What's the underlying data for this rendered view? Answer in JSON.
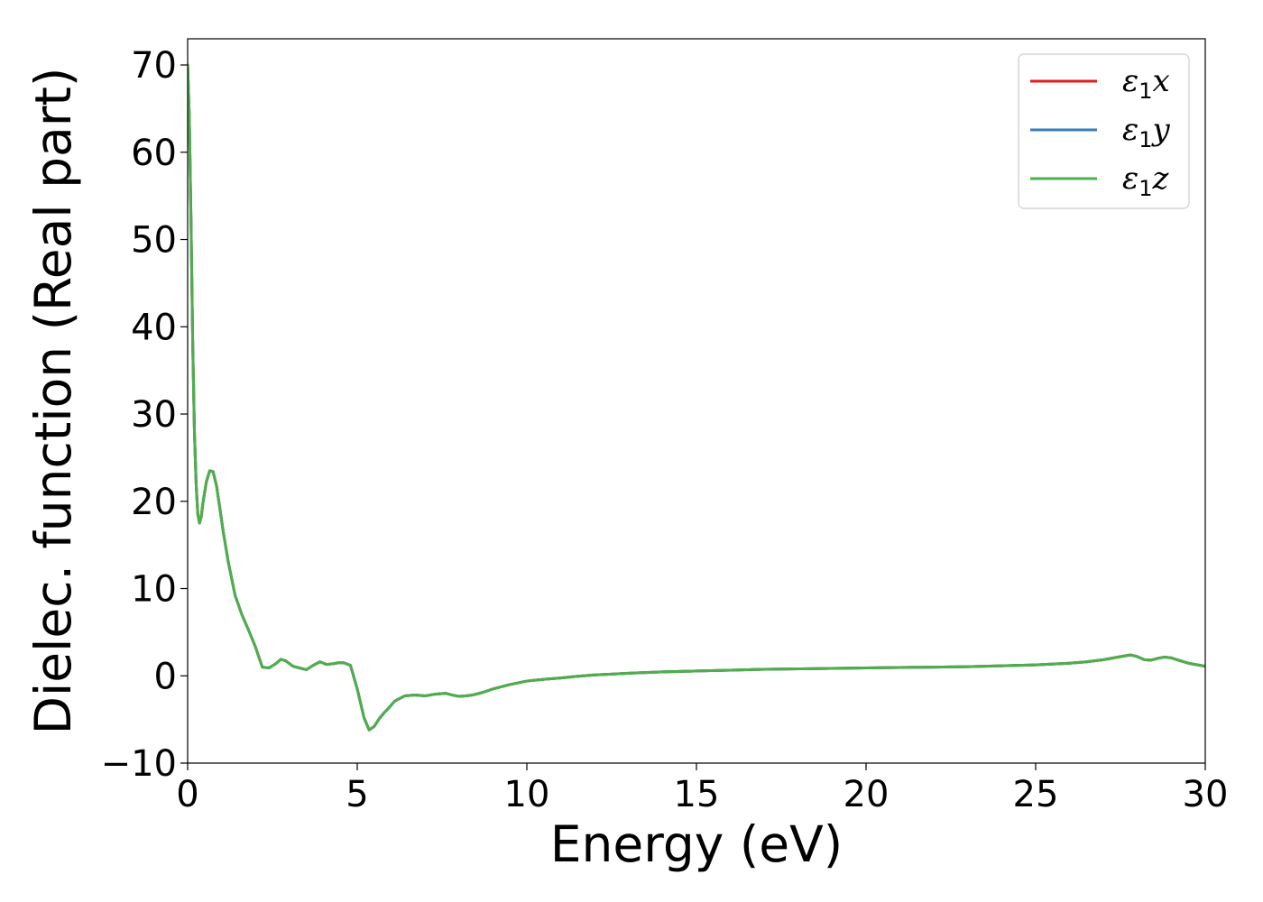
{
  "chart_data": {
    "type": "line",
    "title": "",
    "xlabel": "Energy (eV)",
    "ylabel": "Dielec. function (Real part)",
    "xlim": [
      0,
      30
    ],
    "ylim": [
      -10,
      73
    ],
    "xticks": [
      0,
      5,
      10,
      15,
      20,
      25,
      30
    ],
    "xtick_labels": [
      "0",
      "5",
      "10",
      "15",
      "20",
      "25",
      "30"
    ],
    "yticks": [
      -10,
      0,
      10,
      20,
      30,
      40,
      50,
      60,
      70
    ],
    "ytick_labels": [
      "−10",
      "0",
      "10",
      "20",
      "30",
      "40",
      "50",
      "60",
      "70"
    ],
    "grid": false,
    "legend_position": "top-right",
    "series": [
      {
        "name": "ε₁x",
        "legend_main": "ε",
        "legend_sub": "1",
        "legend_tail": "x",
        "color": "#e41a1c",
        "x": [
          0,
          0.05,
          0.1,
          0.15,
          0.2,
          0.25,
          0.3,
          0.35,
          0.4,
          0.45,
          0.55,
          0.65,
          0.75,
          0.85,
          0.95,
          1.05,
          1.2,
          1.4,
          1.6,
          1.8,
          2.0,
          2.2,
          2.4,
          2.6,
          2.75,
          2.9,
          3.1,
          3.3,
          3.5,
          3.7,
          3.9,
          4.1,
          4.3,
          4.45,
          4.6,
          4.8,
          5.0,
          5.2,
          5.35,
          5.5,
          5.65,
          5.8,
          5.95,
          6.1,
          6.4,
          6.7,
          7.0,
          7.3,
          7.6,
          7.8,
          8.0,
          8.2,
          8.4,
          8.7,
          9.0,
          9.5,
          10.0,
          10.5,
          11.0,
          11.5,
          12.0,
          12.5,
          13.0,
          14.0,
          15.0,
          16.0,
          17.0,
          18.0,
          19.0,
          20.0,
          21.0,
          22.0,
          23.0,
          24.0,
          25.0,
          26.0,
          26.5,
          27.0,
          27.5,
          27.8,
          28.0,
          28.2,
          28.4,
          28.6,
          28.8,
          29.0,
          29.2,
          29.5,
          30.0
        ],
        "y": [
          70,
          64,
          52,
          38,
          28,
          22,
          18.5,
          17.5,
          18.2,
          19.8,
          22.2,
          23.5,
          23.4,
          21.8,
          19.2,
          16.5,
          13.0,
          9.2,
          7.0,
          5.2,
          3.3,
          1.0,
          0.9,
          1.4,
          1.9,
          1.7,
          1.1,
          0.9,
          0.7,
          1.2,
          1.6,
          1.3,
          1.4,
          1.5,
          1.5,
          1.2,
          -1.5,
          -4.8,
          -6.2,
          -5.8,
          -4.9,
          -4.2,
          -3.6,
          -2.9,
          -2.3,
          -2.2,
          -2.3,
          -2.1,
          -2.0,
          -2.2,
          -2.35,
          -2.3,
          -2.2,
          -1.9,
          -1.5,
          -1.0,
          -0.6,
          -0.4,
          -0.25,
          -0.05,
          0.1,
          0.2,
          0.3,
          0.45,
          0.55,
          0.65,
          0.75,
          0.8,
          0.85,
          0.9,
          0.95,
          1.0,
          1.05,
          1.15,
          1.25,
          1.45,
          1.6,
          1.85,
          2.2,
          2.4,
          2.2,
          1.85,
          1.8,
          2.0,
          2.15,
          2.05,
          1.8,
          1.45,
          1.1
        ]
      },
      {
        "name": "ε₁y",
        "legend_main": "ε",
        "legend_sub": "1",
        "legend_tail": "y",
        "color": "#377eb8",
        "x": [
          0,
          0.05,
          0.1,
          0.15,
          0.2,
          0.25,
          0.3,
          0.35,
          0.4,
          0.45,
          0.55,
          0.65,
          0.75,
          0.85,
          0.95,
          1.05,
          1.2,
          1.4,
          1.6,
          1.8,
          2.0,
          2.2,
          2.4,
          2.6,
          2.75,
          2.9,
          3.1,
          3.3,
          3.5,
          3.7,
          3.9,
          4.1,
          4.3,
          4.45,
          4.6,
          4.8,
          5.0,
          5.2,
          5.35,
          5.5,
          5.65,
          5.8,
          5.95,
          6.1,
          6.4,
          6.7,
          7.0,
          7.3,
          7.6,
          7.8,
          8.0,
          8.2,
          8.4,
          8.7,
          9.0,
          9.5,
          10.0,
          10.5,
          11.0,
          11.5,
          12.0,
          12.5,
          13.0,
          14.0,
          15.0,
          16.0,
          17.0,
          18.0,
          19.0,
          20.0,
          21.0,
          22.0,
          23.0,
          24.0,
          25.0,
          26.0,
          26.5,
          27.0,
          27.5,
          27.8,
          28.0,
          28.2,
          28.4,
          28.6,
          28.8,
          29.0,
          29.2,
          29.5,
          30.0
        ],
        "y": [
          70,
          64,
          52,
          38,
          28,
          22,
          18.5,
          17.5,
          18.2,
          19.8,
          22.2,
          23.5,
          23.4,
          21.8,
          19.2,
          16.5,
          13.0,
          9.2,
          7.0,
          5.2,
          3.3,
          1.0,
          0.9,
          1.4,
          1.9,
          1.7,
          1.1,
          0.9,
          0.7,
          1.2,
          1.6,
          1.3,
          1.4,
          1.5,
          1.5,
          1.2,
          -1.5,
          -4.8,
          -6.2,
          -5.8,
          -4.9,
          -4.2,
          -3.6,
          -2.9,
          -2.3,
          -2.2,
          -2.3,
          -2.1,
          -2.0,
          -2.2,
          -2.35,
          -2.3,
          -2.2,
          -1.9,
          -1.5,
          -1.0,
          -0.6,
          -0.4,
          -0.25,
          -0.05,
          0.1,
          0.2,
          0.3,
          0.45,
          0.55,
          0.65,
          0.75,
          0.8,
          0.85,
          0.9,
          0.95,
          1.0,
          1.05,
          1.15,
          1.25,
          1.45,
          1.6,
          1.85,
          2.2,
          2.4,
          2.2,
          1.85,
          1.8,
          2.0,
          2.15,
          2.05,
          1.8,
          1.45,
          1.1
        ]
      },
      {
        "name": "ε₁z",
        "legend_main": "ε",
        "legend_sub": "1",
        "legend_tail": "z",
        "color": "#4daf4a",
        "x": [
          0,
          0.05,
          0.1,
          0.15,
          0.2,
          0.25,
          0.3,
          0.35,
          0.4,
          0.45,
          0.55,
          0.65,
          0.75,
          0.85,
          0.95,
          1.05,
          1.2,
          1.4,
          1.6,
          1.8,
          2.0,
          2.2,
          2.4,
          2.6,
          2.75,
          2.9,
          3.1,
          3.3,
          3.5,
          3.7,
          3.9,
          4.1,
          4.3,
          4.45,
          4.6,
          4.8,
          5.0,
          5.2,
          5.35,
          5.5,
          5.65,
          5.8,
          5.95,
          6.1,
          6.4,
          6.7,
          7.0,
          7.3,
          7.6,
          7.8,
          8.0,
          8.2,
          8.4,
          8.7,
          9.0,
          9.5,
          10.0,
          10.5,
          11.0,
          11.5,
          12.0,
          12.5,
          13.0,
          14.0,
          15.0,
          16.0,
          17.0,
          18.0,
          19.0,
          20.0,
          21.0,
          22.0,
          23.0,
          24.0,
          25.0,
          26.0,
          26.5,
          27.0,
          27.5,
          27.8,
          28.0,
          28.2,
          28.4,
          28.6,
          28.8,
          29.0,
          29.2,
          29.5,
          30.0
        ],
        "y": [
          70,
          64,
          52,
          38,
          28,
          22,
          18.5,
          17.5,
          18.2,
          19.8,
          22.2,
          23.5,
          23.4,
          21.8,
          19.2,
          16.5,
          13.0,
          9.2,
          7.0,
          5.2,
          3.3,
          1.0,
          0.9,
          1.4,
          1.9,
          1.7,
          1.1,
          0.9,
          0.7,
          1.2,
          1.6,
          1.3,
          1.4,
          1.5,
          1.5,
          1.2,
          -1.5,
          -4.8,
          -6.2,
          -5.8,
          -4.9,
          -4.2,
          -3.6,
          -2.9,
          -2.3,
          -2.2,
          -2.3,
          -2.1,
          -2.0,
          -2.2,
          -2.35,
          -2.3,
          -2.2,
          -1.9,
          -1.5,
          -1.0,
          -0.6,
          -0.4,
          -0.25,
          -0.05,
          0.1,
          0.2,
          0.3,
          0.45,
          0.55,
          0.65,
          0.75,
          0.8,
          0.85,
          0.9,
          0.95,
          1.0,
          1.05,
          1.15,
          1.25,
          1.45,
          1.6,
          1.85,
          2.2,
          2.4,
          2.2,
          1.85,
          1.8,
          2.0,
          2.15,
          2.05,
          1.8,
          1.45,
          1.1
        ]
      }
    ]
  }
}
